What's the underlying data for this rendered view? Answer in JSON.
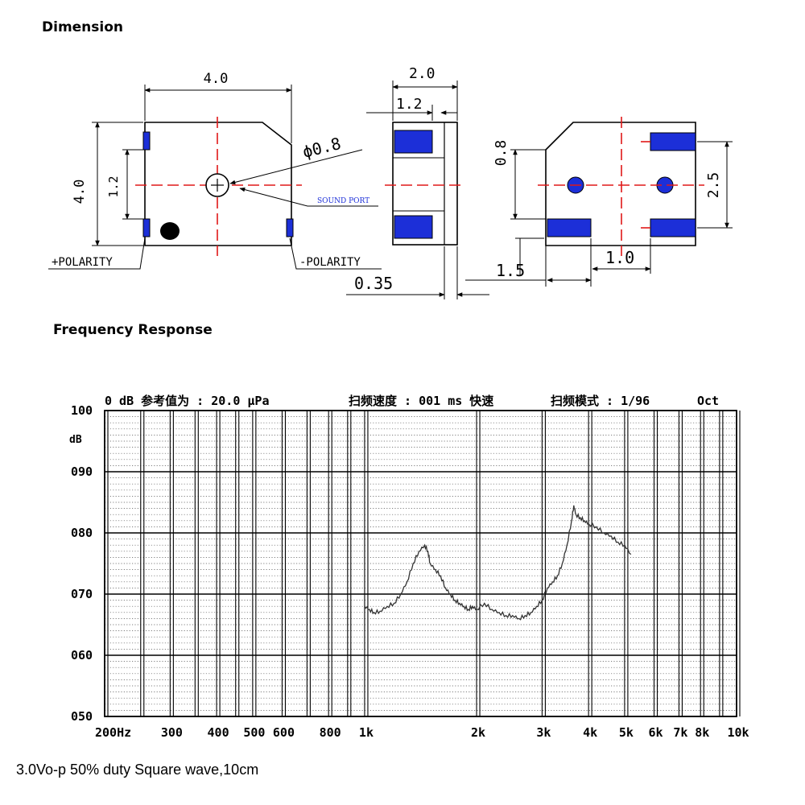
{
  "titles": {
    "dimension": "Dimension",
    "frequency_response": "Frequency Response",
    "caption": "3.0Vo-p 50% duty Square wave,10cm"
  },
  "colors": {
    "pad_blue": "#1c2fd8",
    "centerline_red": "#e01818",
    "ink": "#000000"
  },
  "dimensions": {
    "top_view": {
      "width": "4.0",
      "height": "4.0",
      "pad_gap": "1.2",
      "sound_port_dia": "ϕ0.8",
      "sound_port_label": "SOUND PORT",
      "plus_polarity": "+POLARITY",
      "minus_polarity": "-POLARITY"
    },
    "side_view": {
      "height": "2.0",
      "pad_height": "1.2",
      "pad_thickness": "0.35"
    },
    "bottom_view": {
      "hole_offset": "0.8",
      "pad_pitch": "2.5",
      "pad_width": "1.5",
      "pad_spacing": "1.0"
    }
  },
  "chart_header": {
    "ref": "0 dB 参考值为 : 20.0 μPa",
    "sweep_speed": "扫频速度 : 001 ms 快速",
    "sweep_mode": "扫频模式 : 1/96",
    "oct": "Oct"
  },
  "chart_data": {
    "type": "line",
    "title": "",
    "xlabel": "",
    "ylabel": "dB",
    "x_scale": "log",
    "xlim": [
      200,
      10000
    ],
    "ylim": [
      50,
      100
    ],
    "grid": true,
    "y_ticks": [
      "100",
      "090",
      "080",
      "070",
      "060",
      "050"
    ],
    "y_tick_values": [
      100,
      90,
      80,
      70,
      60,
      50
    ],
    "x_ticks": [
      "200Hz",
      "300",
      "400",
      "500",
      "600",
      "800",
      "1k",
      "2k",
      "3k",
      "4k",
      "5k",
      "6k",
      "7k",
      "8k",
      "10k"
    ],
    "x_tick_values": [
      200,
      300,
      400,
      500,
      600,
      800,
      1000,
      2000,
      3000,
      4000,
      5000,
      6000,
      7000,
      8000,
      10000
    ],
    "series": [
      {
        "x": [
          1000,
          1030,
          1060,
          1100,
          1150,
          1200,
          1250,
          1300,
          1350,
          1400,
          1450,
          1480,
          1500,
          1550,
          1600,
          1650,
          1700,
          1750,
          1800,
          1850,
          1900,
          1950,
          2000,
          2100,
          2200,
          2300,
          2400,
          2500,
          2600,
          2700,
          2800,
          2900,
          3000,
          3100,
          3200,
          3300,
          3400,
          3500,
          3600,
          3650,
          3700,
          3800,
          3900,
          4000,
          4200,
          4400,
          4600,
          4800,
          5000,
          5200
        ],
        "y": [
          68,
          67.5,
          67,
          67.2,
          68,
          68.5,
          70,
          72,
          75,
          77,
          78,
          77,
          75,
          74,
          73,
          71,
          70,
          69,
          68.5,
          68,
          67.5,
          68,
          67.5,
          68.5,
          67.5,
          67,
          66.5,
          66.5,
          66,
          66.5,
          67,
          68,
          69,
          71,
          72,
          73,
          75,
          78,
          82,
          84.5,
          83,
          82.5,
          82,
          81.5,
          81,
          80,
          79.5,
          78.5,
          78,
          76.5
        ]
      }
    ]
  }
}
